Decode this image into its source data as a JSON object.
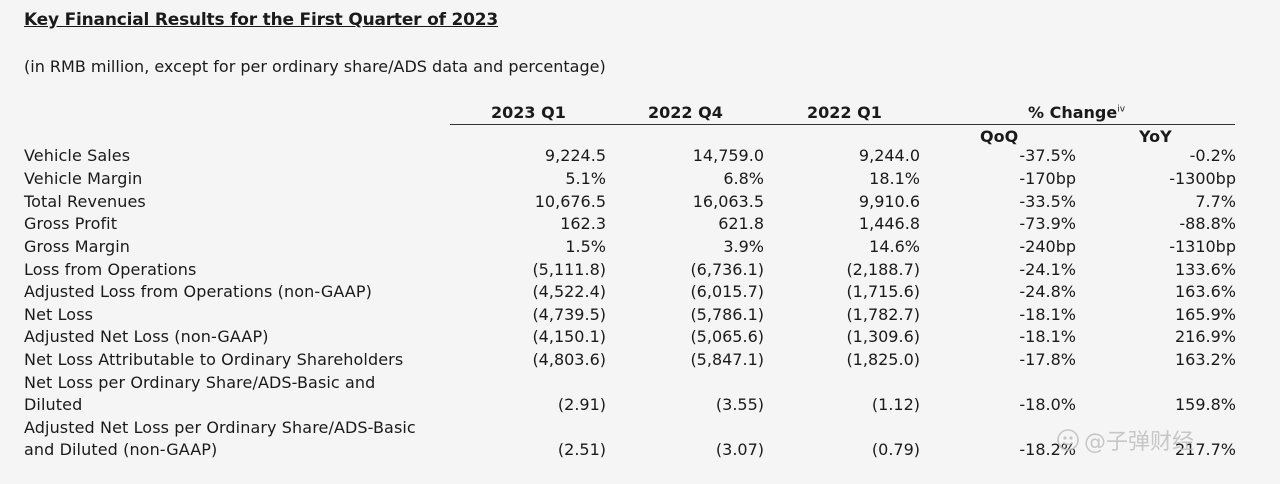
{
  "title": "Key Financial Results for the First Quarter of 2023",
  "subtitle": "(in RMB million, except for per ordinary share/ADS data and percentage)",
  "headers": {
    "col1": "2023 Q1",
    "col2": "2022 Q4",
    "col3": "2022 Q1",
    "change": "% Change",
    "change_sup": "iv",
    "qoq": "QoQ",
    "yoy": "YoY"
  },
  "rows": [
    {
      "label": "Vehicle Sales",
      "c1": "9,224.5",
      "c2": "14,759.0",
      "c3": "9,244.0",
      "qoq": "-37.5%",
      "yoy": "-0.2%"
    },
    {
      "label": "Vehicle Margin",
      "c1": "5.1%",
      "c2": "6.8%",
      "c3": "18.1%",
      "qoq": "-170bp",
      "yoy": "-1300bp"
    },
    {
      "label": "Total Revenues",
      "c1": "10,676.5",
      "c2": "16,063.5",
      "c3": "9,910.6",
      "qoq": "-33.5%",
      "yoy": "7.7%"
    },
    {
      "label": "Gross Profit",
      "c1": "162.3",
      "c2": "621.8",
      "c3": "1,446.8",
      "qoq": "-73.9%",
      "yoy": "-88.8%"
    },
    {
      "label": "Gross Margin",
      "c1": "1.5%",
      "c2": "3.9%",
      "c3": "14.6%",
      "qoq": "-240bp",
      "yoy": "-1310bp"
    },
    {
      "label": "Loss from Operations",
      "c1": "(5,111.8)",
      "c2": "(6,736.1)",
      "c3": "(2,188.7)",
      "qoq": "-24.1%",
      "yoy": "133.6%"
    },
    {
      "label": "Adjusted Loss from Operations (non-GAAP)",
      "c1": "(4,522.4)",
      "c2": "(6,015.7)",
      "c3": "(1,715.6)",
      "qoq": "-24.8%",
      "yoy": "163.6%"
    },
    {
      "label": "Net Loss",
      "c1": "(4,739.5)",
      "c2": "(5,786.1)",
      "c3": "(1,782.7)",
      "qoq": "-18.1%",
      "yoy": "165.9%"
    },
    {
      "label": "Adjusted Net Loss (non-GAAP)",
      "c1": "(4,150.1)",
      "c2": "(5,065.6)",
      "c3": "(1,309.6)",
      "qoq": "-18.1%",
      "yoy": "216.9%"
    },
    {
      "label": "Net Loss Attributable to Ordinary Shareholders",
      "c1": "(4,803.6)",
      "c2": "(5,847.1)",
      "c3": "(1,825.0)",
      "qoq": "-17.8%",
      "yoy": "163.2%"
    },
    {
      "label": "Net Loss per Ordinary Share/ADS-Basic and",
      "label2": "Diluted",
      "c1": "(2.91)",
      "c2": "(3.55)",
      "c3": "(1.12)",
      "qoq": "-18.0%",
      "yoy": "159.8%"
    },
    {
      "label": "Adjusted Net Loss per Ordinary Share/ADS-Basic",
      "label2": "and Diluted (non-GAAP)",
      "c1": "(2.51)",
      "c2": "(3.07)",
      "c3": "(0.79)",
      "qoq": "-18.2%",
      "yoy": "217.7%"
    }
  ],
  "watermark": "@子弹财经"
}
